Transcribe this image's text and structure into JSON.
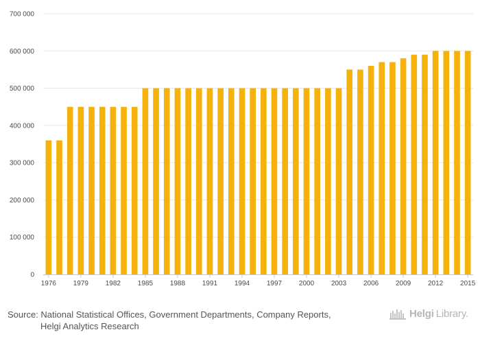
{
  "chart_data": {
    "type": "bar",
    "title": "",
    "xlabel": "",
    "ylabel": "",
    "categories": [
      "1976",
      "1977",
      "1978",
      "1979",
      "1980",
      "1981",
      "1982",
      "1983",
      "1984",
      "1985",
      "1986",
      "1987",
      "1988",
      "1989",
      "1990",
      "1991",
      "1992",
      "1993",
      "1994",
      "1995",
      "1996",
      "1997",
      "1998",
      "1999",
      "2000",
      "2001",
      "2002",
      "2003",
      "2004",
      "2005",
      "2006",
      "2007",
      "2008",
      "2009",
      "2010",
      "2011",
      "2012",
      "2013",
      "2014",
      "2015"
    ],
    "values": [
      360000,
      360000,
      450000,
      450000,
      450000,
      450000,
      450000,
      450000,
      450000,
      500000,
      500000,
      500000,
      500000,
      500000,
      500000,
      500000,
      500000,
      500000,
      500000,
      500000,
      500000,
      500000,
      500000,
      500000,
      500000,
      500000,
      500000,
      500000,
      550000,
      550000,
      560000,
      570000,
      570000,
      580000,
      590000,
      590000,
      600000,
      600000,
      600000,
      600000
    ],
    "ylim": [
      0,
      700000
    ],
    "yticks": [
      0,
      100000,
      200000,
      300000,
      400000,
      500000,
      600000,
      700000
    ],
    "ytick_labels": [
      "0",
      "100 000",
      "200 000",
      "300 000",
      "400 000",
      "500 000",
      "600 000",
      "700 000"
    ],
    "xtick_labels": [
      "1976",
      "1979",
      "1982",
      "1985",
      "1988",
      "1991",
      "1994",
      "1997",
      "2000",
      "2003",
      "2006",
      "2009",
      "2012",
      "2015"
    ],
    "grid": true,
    "bar_color": "#f5b10c"
  },
  "footer": {
    "source_line1": "Source: National Statistical Offices, Government Departments, Company Reports,",
    "source_line2": "Helgi Analytics Research",
    "brand_name_bold": "Helgi",
    "brand_name_light": "Library."
  }
}
